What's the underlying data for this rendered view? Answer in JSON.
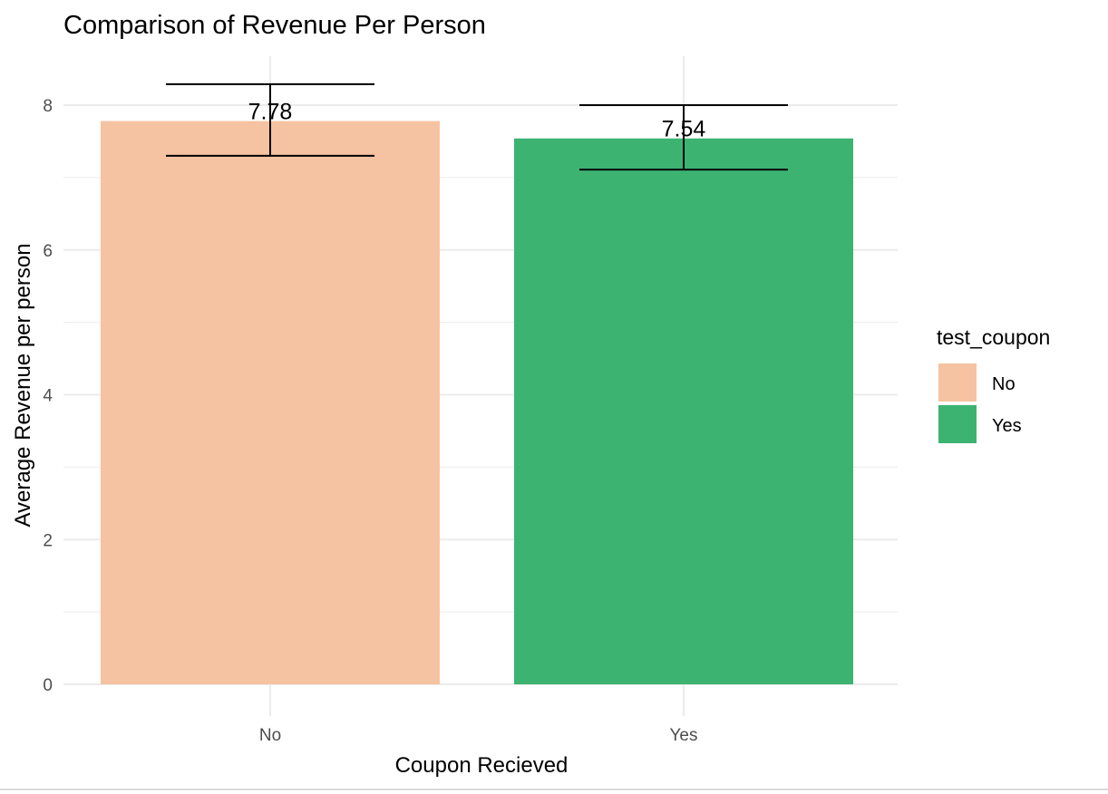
{
  "chart_data": {
    "type": "bar",
    "title": "Comparison of Revenue Per Person",
    "xlabel": "Coupon Recieved",
    "ylabel": "Average Revenue per person",
    "categories": [
      "No",
      "Yes"
    ],
    "values": [
      7.78,
      7.54
    ],
    "value_labels": [
      "7.78",
      "7.54"
    ],
    "error_bars": [
      {
        "lower": 7.3,
        "upper": 8.29
      },
      {
        "lower": 7.11,
        "upper": 8.0
      }
    ],
    "colors": [
      "#F5C3A1",
      "#3CB371"
    ],
    "ylim": [
      0,
      8.5
    ],
    "yticks": [
      0,
      2,
      4,
      6,
      8
    ],
    "ytick_labels": [
      "0",
      "2",
      "4",
      "6",
      "8"
    ],
    "grid": true,
    "legend": {
      "title": "test_coupon",
      "position": "right",
      "entries": [
        {
          "label": "No",
          "color": "#F5C3A1"
        },
        {
          "label": "Yes",
          "color": "#3CB371"
        }
      ]
    }
  }
}
